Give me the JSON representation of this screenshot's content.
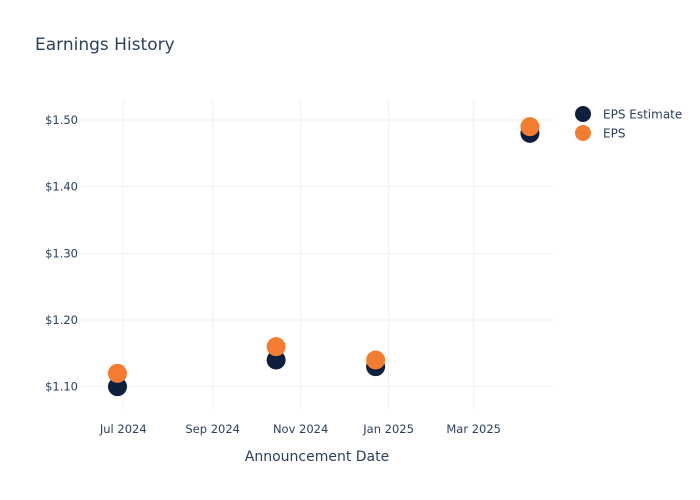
{
  "chart_data": {
    "type": "scatter",
    "title": "Earnings History",
    "xlabel": "Announcement Date",
    "ylabel": "",
    "x_ticks": [
      {
        "date": "2024-07-01",
        "label": "Jul 2024"
      },
      {
        "date": "2024-09-01",
        "label": "Sep 2024"
      },
      {
        "date": "2024-11-01",
        "label": "Nov 2024"
      },
      {
        "date": "2025-01-01",
        "label": "Jan 2025"
      },
      {
        "date": "2025-03-01",
        "label": "Mar 2025"
      }
    ],
    "xlim": [
      "2024-06-01",
      "2025-04-25"
    ],
    "y_ticks": [
      {
        "value": 1.1,
        "label": "$1.10"
      },
      {
        "value": 1.2,
        "label": "$1.20"
      },
      {
        "value": 1.3,
        "label": "$1.30"
      },
      {
        "value": 1.4,
        "label": "$1.40"
      },
      {
        "value": 1.5,
        "label": "$1.50"
      }
    ],
    "ylim": [
      1.065,
      1.53
    ],
    "grid": true,
    "legend_position": "top-right",
    "series": [
      {
        "name": "EPS Estimate",
        "color": "#0d1f3c",
        "points": [
          {
            "x": "2024-06-27",
            "y": 1.1
          },
          {
            "x": "2024-10-15",
            "y": 1.14
          },
          {
            "x": "2024-12-23",
            "y": 1.13
          },
          {
            "x": "2025-04-09",
            "y": 1.48
          }
        ]
      },
      {
        "name": "EPS",
        "color": "#f47c30",
        "points": [
          {
            "x": "2024-06-27",
            "y": 1.12
          },
          {
            "x": "2024-10-15",
            "y": 1.16
          },
          {
            "x": "2024-12-23",
            "y": 1.14
          },
          {
            "x": "2025-04-09",
            "y": 1.49
          }
        ]
      }
    ]
  }
}
